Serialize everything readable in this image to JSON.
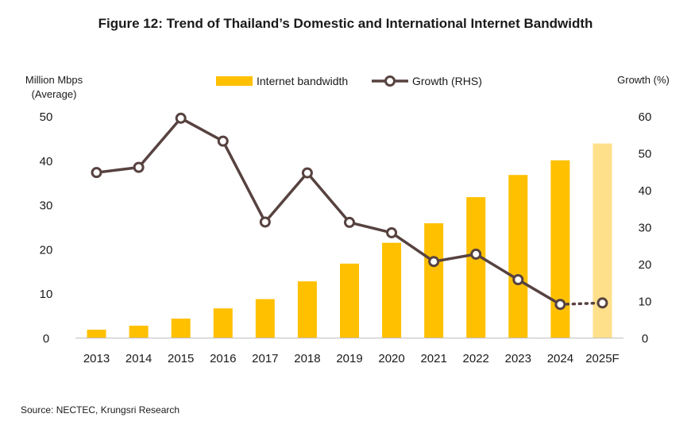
{
  "chart_data": {
    "type": "bar",
    "title": "Figure 12: Trend of Thailand’s Domestic and International Internet Bandwidth",
    "ylabel_left_line1": "Million Mbps",
    "ylabel_left_line2": "(Average)",
    "ylabel_right": "Growth (%)",
    "categories": [
      "2013",
      "2014",
      "2015",
      "2016",
      "2017",
      "2018",
      "2019",
      "2020",
      "2021",
      "2022",
      "2023",
      "2024",
      "2025F"
    ],
    "series": [
      {
        "name": "Internet bandwidth",
        "type": "bar",
        "axis": "left",
        "color": "#FFC000",
        "forecast_color": "#FFE08A",
        "values": [
          1.8,
          2.7,
          4.3,
          6.6,
          8.7,
          12.7,
          16.7,
          21.4,
          25.8,
          31.7,
          36.7,
          40.0,
          43.8
        ]
      },
      {
        "name": "Growth (RHS)",
        "type": "line",
        "axis": "right",
        "color": "#574240",
        "values": [
          44.7,
          46.1,
          59.4,
          53.2,
          31.3,
          44.6,
          31.2,
          28.4,
          20.6,
          22.6,
          15.7,
          9.0,
          9.4
        ],
        "forecast_dotted_from_index": 11
      }
    ],
    "ylim_left": [
      0,
      50
    ],
    "ylim_right": [
      0,
      60
    ],
    "yticks_left": [
      0,
      10,
      20,
      30,
      40,
      50
    ],
    "yticks_right": [
      0,
      10,
      20,
      30,
      40,
      50,
      60
    ],
    "grid": false,
    "legend_position": "top-center"
  },
  "source": "Source: NECTEC, Krungsri Research"
}
